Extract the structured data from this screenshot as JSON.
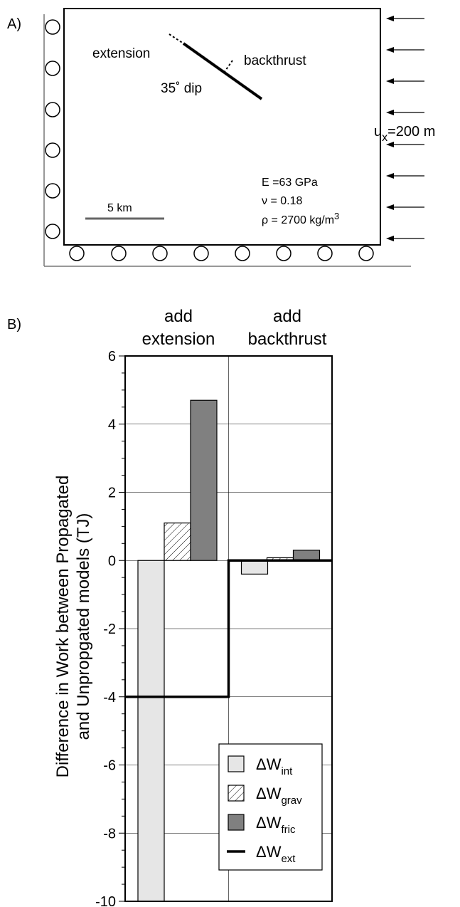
{
  "panel_a": {
    "label": "A)",
    "extension_label": "extension",
    "backthrust_label": "backthrust",
    "dip_label": "35˚ dip",
    "ux_symbol": "u",
    "ux_subscript": "x",
    "ux_value": "=200 m",
    "scale_label": "5 km",
    "E_label": "E =63 GPa",
    "nu_label": "ν = 0.18",
    "rho_label": "ρ = 2700 kg/m",
    "rho_exponent": "3"
  },
  "panel_b": {
    "label": "B)",
    "group1_line1": "add",
    "group1_line2": "extension",
    "group2_line1": "add",
    "group2_line2": "backthrust",
    "ylabel_line1": "Difference in Work between Propagated",
    "ylabel_line2": "and Unpropgated models (TJ)"
  },
  "chart_data": {
    "type": "bar",
    "categories": [
      "add extension",
      "add backthrust"
    ],
    "ylim": [
      -10,
      6
    ],
    "yticks": [
      6,
      4,
      2,
      0,
      -2,
      -4,
      -6,
      -8,
      -10
    ],
    "ytick_labels": [
      "6",
      "4",
      "2",
      "0",
      "-2",
      "-4",
      "-6",
      "-8",
      "-10"
    ],
    "grid": true,
    "legend_position": "bottom-right",
    "series": [
      {
        "name": "ΔW",
        "sub": "int",
        "values": [
          -10,
          -0.4
        ],
        "fill": "#e6e6e6",
        "pattern": false
      },
      {
        "name": "ΔW",
        "sub": "grav",
        "values": [
          1.1,
          0.08
        ],
        "fill": "#ffffff",
        "pattern": true
      },
      {
        "name": "ΔW",
        "sub": "fric",
        "values": [
          4.7,
          0.3
        ],
        "fill": "#808080",
        "pattern": false
      }
    ],
    "line_series": {
      "name": "ΔW",
      "sub": "ext",
      "values": [
        -4,
        0
      ],
      "type": "step",
      "color": "#000000"
    }
  }
}
